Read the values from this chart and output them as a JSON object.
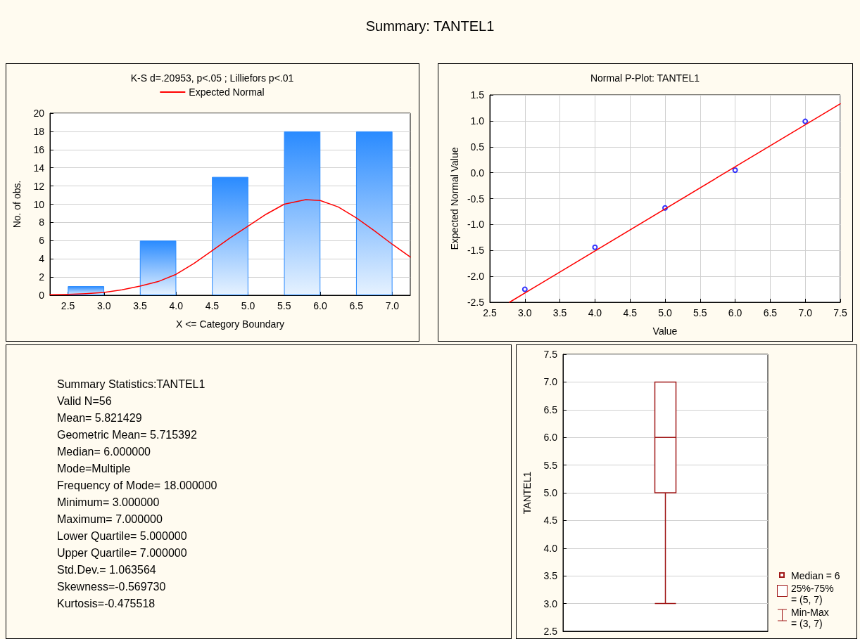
{
  "chart_data": [
    {
      "type": "other",
      "title": "Summary: TANTEL1"
    },
    {
      "type": "bar",
      "title": "K-S d=.20953, p<.05 ; Lilliefors p<.01",
      "xlabel": "X <= Category Boundary",
      "ylabel": "No. of obs.",
      "xlim": [
        2.25,
        7.25
      ],
      "xticks": [
        2.5,
        {
          "value": 3,
          "label": "3.0"
        },
        3.5,
        {
          "value": 4,
          "label": "4.0"
        },
        4.5,
        {
          "value": 5,
          "label": "5.0"
        },
        5.5,
        {
          "value": 6,
          "label": "6.0"
        },
        6.5,
        {
          "value": 7,
          "label": "7.0"
        }
      ],
      "ylim": [
        0,
        20
      ],
      "yticks": [
        0,
        2,
        4,
        6,
        8,
        10,
        12,
        14,
        16,
        18,
        20
      ],
      "grid": "y",
      "legend": "top",
      "series": [
        {
          "type": "bar",
          "color": "#2a8bff",
          "x": [
            2.75,
            3.75,
            4.75,
            5.75,
            6.75
          ],
          "values": [
            1,
            6,
            13,
            18,
            18
          ]
        },
        {
          "type": "line",
          "name": "Expected Normal",
          "color": "#ff0000",
          "x": [
            2.25,
            2.5,
            2.75,
            3,
            3.25,
            3.5,
            3.75,
            4,
            4.25,
            4.5,
            4.75,
            5,
            5.25,
            5.5,
            5.8,
            6,
            6.25,
            6.5,
            6.75,
            7,
            7.25
          ],
          "values": [
            0.05,
            0.1,
            0.18,
            0.3,
            0.6,
            1,
            1.5,
            2.3,
            3.5,
            4.9,
            6.3,
            7.6,
            8.9,
            10,
            10.5,
            10.4,
            9.7,
            8.5,
            7.1,
            5.6,
            4.2
          ]
        }
      ]
    },
    {
      "type": "scatter",
      "title": "Normal P-Plot: TANTEL1",
      "xlabel": "Value",
      "ylabel": "Expected Normal Value",
      "xlim": [
        2.5,
        7.5
      ],
      "xticks": [
        2.5,
        {
          "value": 3,
          "label": "3.0"
        },
        3.5,
        {
          "value": 4,
          "label": "4.0"
        },
        4.5,
        {
          "value": 5,
          "label": "5.0"
        },
        5.5,
        {
          "value": 6,
          "label": "6.0"
        },
        6.5,
        {
          "value": 7,
          "label": "7.0"
        },
        7.5
      ],
      "ylim": [
        -2.5,
        1.5
      ],
      "yticks": [
        -2.5,
        {
          "value": -2,
          "label": "-2.0"
        },
        -1.5,
        {
          "value": -1,
          "label": "-1.0"
        },
        -0.5,
        {
          "value": 0,
          "label": "0.0"
        },
        0.5,
        {
          "value": 1,
          "label": "1.0"
        },
        1.5
      ],
      "grid": true,
      "marker": "circle",
      "series": [
        {
          "type": "scatter",
          "color": "#0000ff",
          "x": [
            3,
            4,
            5,
            6,
            7
          ],
          "values": [
            -2.25,
            -1.44,
            -0.68,
            0.05,
            0.99
          ]
        },
        {
          "type": "line",
          "marker": "none",
          "color": "#ff0000",
          "x": [
            2.78,
            7.5
          ],
          "values": [
            -2.5,
            1.33
          ]
        }
      ]
    },
    {
      "type": "other",
      "annotations": [
        "Summary Statistics:TANTEL1",
        "Valid N=56",
        "Mean= 5.821429",
        "Geometric Mean= 5.715392",
        "Median= 6.000000",
        "Mode=Multiple",
        "Frequency of Mode= 18.000000",
        "Minimum= 3.000000",
        "Maximum= 7.000000",
        "Lower Quartile= 5.000000",
        "Upper Quartile= 7.000000",
        "Std.Dev.= 1.063564",
        "Skewness=-0.569730",
        "Kurtosis=-0.475518"
      ]
    },
    {
      "type": "box",
      "ylabel": "TANTEL1",
      "categories": [
        null
      ],
      "ylim": [
        2.5,
        7.5
      ],
      "yticks": [
        2.5,
        {
          "value": 3,
          "label": "3.0"
        },
        3.5,
        {
          "value": 4,
          "label": "4.0"
        },
        4.5,
        {
          "value": 5,
          "label": "5.0"
        },
        5.5,
        {
          "value": 6,
          "label": "6.0"
        },
        6.5,
        {
          "value": 7,
          "label": "7.0"
        },
        7.5
      ],
      "grid": "y",
      "tick_labels": "y",
      "annotations": [
        "Median = 6",
        "25%-75%\n= (5, 7)",
        "Min-Max\n= (3, 7)"
      ],
      "series": [
        {
          "color": "#a01818",
          "boxes": [
            {
              "low": 3,
              "q1": 5,
              "median": 6,
              "q3": 7,
              "high": 7
            }
          ]
        }
      ]
    }
  ]
}
